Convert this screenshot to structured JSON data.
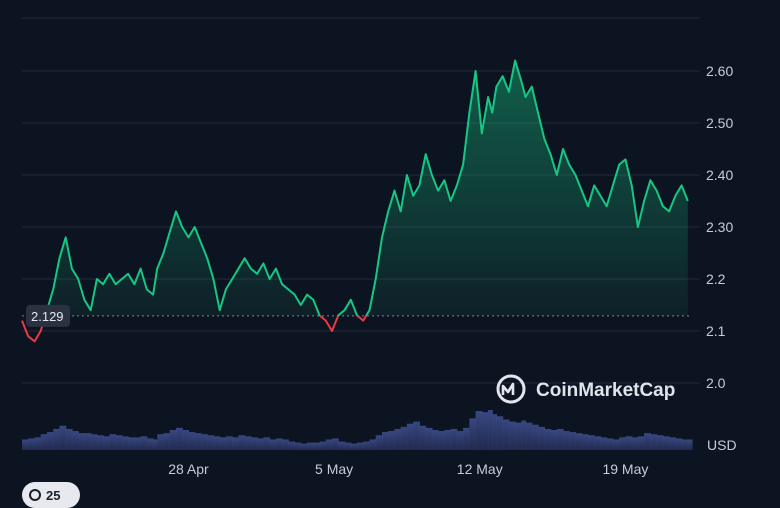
{
  "chart_data": {
    "type": "area",
    "ylim": [
      1.88,
      2.72
    ],
    "y_ticks": [
      "2.0",
      "2.1",
      "2.2",
      "2.30",
      "2.40",
      "2.50",
      "2.60"
    ],
    "x_ticks": [
      {
        "label": "28 Apr",
        "x": 8
      },
      {
        "label": "5 May",
        "x": 15
      },
      {
        "label": "12 May",
        "x": 22
      },
      {
        "label": "19 May",
        "x": 29
      }
    ],
    "xlim": [
      0,
      32.2
    ],
    "currency_label": "USD",
    "reference_price": 2.129,
    "reference_label": "2.129",
    "series": [
      {
        "x": [
          0,
          0.3,
          0.6,
          0.9,
          1.2,
          1.5,
          1.8,
          2.1,
          2.4,
          2.7,
          3.0,
          3.3,
          3.6,
          3.9,
          4.2,
          4.5,
          4.8,
          5.1,
          5.4,
          5.7,
          6.0,
          6.3,
          6.5,
          6.8,
          7.1,
          7.4,
          7.7,
          8.0,
          8.3,
          8.6,
          8.9,
          9.2,
          9.5,
          9.8,
          10.1,
          10.4,
          10.7,
          11.0,
          11.3,
          11.6,
          11.9,
          12.2,
          12.5,
          12.8,
          13.1,
          13.4,
          13.7,
          14.0,
          14.3,
          14.6,
          14.9,
          15.2,
          15.5,
          15.8,
          16.1,
          16.4,
          16.7,
          17.0,
          17.3,
          17.6,
          17.9,
          18.2,
          18.5,
          18.8,
          19.1,
          19.4,
          19.7,
          20.0,
          20.3,
          20.6,
          20.9,
          21.2,
          21.5,
          21.8,
          22.1,
          22.4,
          22.6,
          22.8,
          23.1,
          23.4,
          23.7,
          24.0,
          24.2,
          24.5,
          24.8,
          25.1,
          25.4,
          25.7,
          26.0,
          26.3,
          26.6,
          26.9,
          27.2,
          27.5,
          27.8,
          28.1,
          28.4,
          28.7,
          29.0,
          29.3,
          29.6,
          29.9,
          30.2,
          30.5,
          30.8,
          31.1,
          31.4,
          31.7,
          32.0
        ],
        "values": [
          2.12,
          2.09,
          2.08,
          2.1,
          2.14,
          2.18,
          2.24,
          2.28,
          2.22,
          2.2,
          2.16,
          2.14,
          2.2,
          2.19,
          2.21,
          2.19,
          2.2,
          2.21,
          2.19,
          2.22,
          2.18,
          2.17,
          2.22,
          2.25,
          2.29,
          2.33,
          2.3,
          2.28,
          2.3,
          2.27,
          2.24,
          2.2,
          2.14,
          2.18,
          2.2,
          2.22,
          2.24,
          2.22,
          2.21,
          2.23,
          2.2,
          2.22,
          2.19,
          2.18,
          2.17,
          2.15,
          2.17,
          2.16,
          2.13,
          2.12,
          2.1,
          2.13,
          2.14,
          2.16,
          2.13,
          2.12,
          2.14,
          2.2,
          2.28,
          2.33,
          2.37,
          2.33,
          2.4,
          2.36,
          2.38,
          2.44,
          2.4,
          2.37,
          2.39,
          2.35,
          2.38,
          2.42,
          2.52,
          2.6,
          2.48,
          2.55,
          2.52,
          2.57,
          2.59,
          2.56,
          2.62,
          2.58,
          2.55,
          2.57,
          2.52,
          2.47,
          2.44,
          2.4,
          2.45,
          2.42,
          2.4,
          2.37,
          2.34,
          2.38,
          2.36,
          2.34,
          2.38,
          2.42,
          2.43,
          2.38,
          2.3,
          2.35,
          2.39,
          2.37,
          2.34,
          2.33,
          2.36,
          2.38,
          2.35
        ],
        "volume": [
          1.0,
          1.1,
          1.2,
          1.5,
          1.7,
          2.0,
          2.3,
          2.0,
          1.8,
          1.6,
          1.6,
          1.5,
          1.4,
          1.3,
          1.5,
          1.4,
          1.3,
          1.2,
          1.2,
          1.3,
          1.1,
          1.0,
          1.5,
          1.6,
          1.9,
          2.1,
          1.9,
          1.7,
          1.6,
          1.5,
          1.4,
          1.3,
          1.2,
          1.3,
          1.2,
          1.4,
          1.3,
          1.2,
          1.1,
          1.2,
          1.0,
          1.1,
          1.0,
          0.8,
          0.7,
          0.6,
          0.7,
          0.7,
          0.8,
          1.0,
          1.1,
          0.8,
          0.7,
          0.6,
          0.7,
          0.8,
          1.0,
          1.4,
          1.7,
          1.8,
          2.0,
          2.2,
          2.5,
          2.7,
          2.3,
          2.1,
          1.9,
          1.8,
          1.9,
          2.0,
          1.8,
          2.1,
          3.0,
          3.7,
          3.6,
          3.8,
          3.4,
          3.2,
          2.9,
          2.7,
          2.6,
          2.8,
          2.6,
          2.4,
          2.2,
          2.0,
          1.9,
          2.0,
          1.8,
          1.7,
          1.6,
          1.5,
          1.4,
          1.3,
          1.2,
          1.1,
          1.0,
          1.2,
          1.3,
          1.2,
          1.3,
          1.6,
          1.5,
          1.4,
          1.3,
          1.2,
          1.1,
          1.0,
          1.0
        ]
      }
    ]
  },
  "watermark": "CoinMarketCap",
  "badge_count": "25",
  "colors": {
    "background": "#0d1421",
    "up_line": "#16c784",
    "down_line": "#ea3943",
    "grid": "#222a38",
    "volume": "#2f3c6b",
    "reference_line": "#7c8595"
  }
}
